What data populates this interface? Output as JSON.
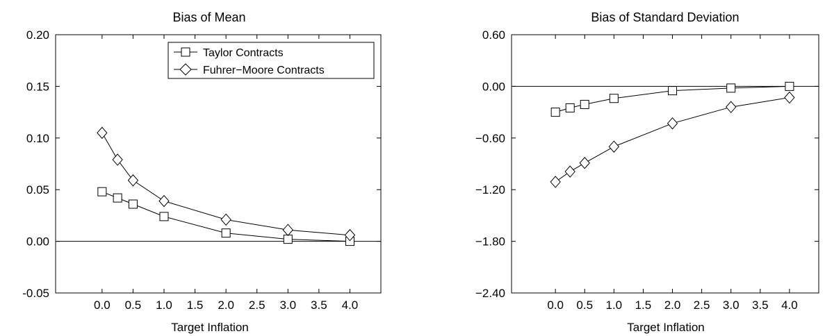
{
  "chart_data": [
    {
      "type": "line",
      "title": "Bias of Mean",
      "xlabel": "Target Inflation",
      "ylabel": "",
      "x": [
        0.0,
        0.25,
        0.5,
        1.0,
        2.0,
        3.0,
        4.0
      ],
      "xticks": [
        "0.0",
        "0.5",
        "1.0",
        "1.5",
        "2.0",
        "2.5",
        "3.0",
        "3.5",
        "4.0"
      ],
      "xlim": [
        -0.75,
        4.5
      ],
      "yticks": [
        "0.20",
        "0.15",
        "0.10",
        "0.05",
        "0.00",
        "-0.05"
      ],
      "ylim": [
        -0.05,
        0.2
      ],
      "zero_line": true,
      "legend_position": "top-right",
      "series": [
        {
          "name": "Taylor Contracts",
          "marker": "square",
          "values": [
            0.048,
            0.042,
            0.036,
            0.024,
            0.008,
            0.002,
            0.0
          ]
        },
        {
          "name": "Fuhrer−Moore Contracts",
          "marker": "diamond",
          "values": [
            0.105,
            0.079,
            0.059,
            0.039,
            0.021,
            0.011,
            0.006
          ]
        }
      ]
    },
    {
      "type": "line",
      "title": "Bias of Standard Deviation",
      "xlabel": "Target Inflation",
      "ylabel": "",
      "x": [
        0.0,
        0.25,
        0.5,
        1.0,
        2.0,
        3.0,
        4.0
      ],
      "xticks": [
        "0.0",
        "0.5",
        "1.0",
        "1.5",
        "2.0",
        "2.5",
        "3.0",
        "3.5",
        "4.0"
      ],
      "xlim": [
        -0.75,
        4.5
      ],
      "yticks": [
        "0.60",
        "0.00",
        "−0.60",
        "−1.20",
        "−1.80",
        "−2.40"
      ],
      "ylim": [
        -2.4,
        0.6
      ],
      "zero_line": true,
      "series": [
        {
          "name": "Taylor Contracts",
          "marker": "square",
          "values": [
            -0.3,
            -0.25,
            -0.21,
            -0.14,
            -0.05,
            -0.02,
            0.0
          ]
        },
        {
          "name": "Fuhrer−Moore Contracts",
          "marker": "diamond",
          "values": [
            -1.11,
            -0.99,
            -0.89,
            -0.7,
            -0.43,
            -0.24,
            -0.13
          ]
        }
      ]
    }
  ]
}
